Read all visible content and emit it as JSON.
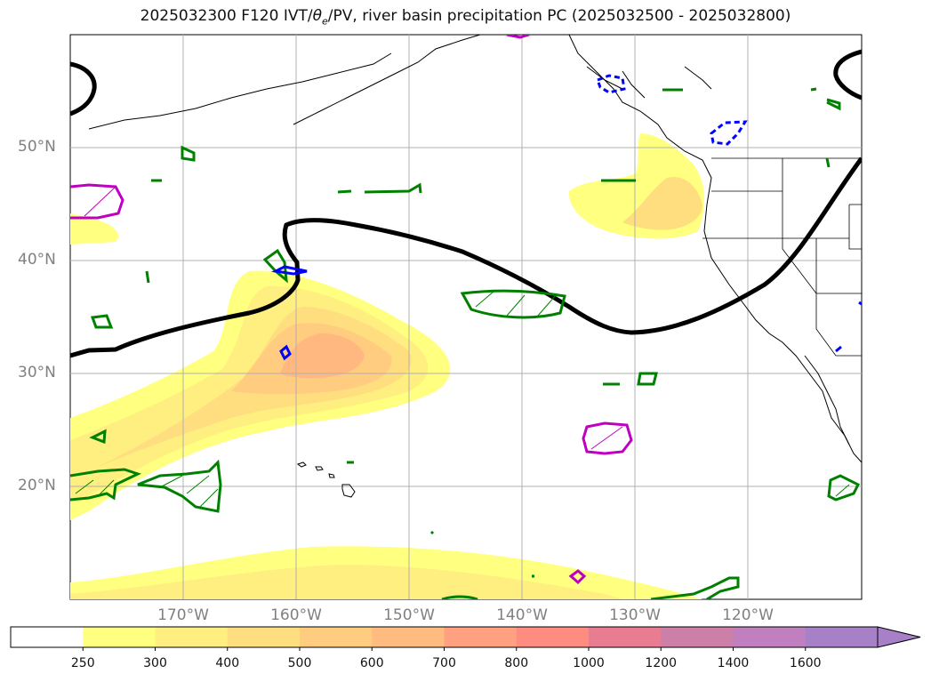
{
  "title": "2025032300 F120 IVT/θe/PV, river basin precipitation PC (2025032500 - 2025032800)",
  "title_parts": {
    "prefix": "2025032300 F120 IVT/",
    "theta": "θ",
    "sub": "e",
    "suffix": "/PV, river basin precipitation PC (2025032500 - 2025032800)"
  },
  "map": {
    "lat_labels": [
      "50°N",
      "40°N",
      "30°N",
      "20°N"
    ],
    "lon_labels": [
      "170°W",
      "160°W",
      "150°W",
      "140°W",
      "130°W",
      "120°W"
    ],
    "colors": {
      "theta_e_contour": "#000000",
      "pv_contour": "#008000",
      "precip_pos": "#c000c0",
      "precip_neg": "#0000ff",
      "grid": "#b0b0b0"
    }
  },
  "colorbar": {
    "labels": [
      "250",
      "300",
      "400",
      "500",
      "600",
      "700",
      "800",
      "1000",
      "1200",
      "1400",
      "1600"
    ],
    "colors": [
      "#ffffff",
      "#ffff80",
      "#ffee80",
      "#ffde80",
      "#ffcc80",
      "#ffbb80",
      "#ffa080",
      "#ff8c80",
      "#e87c90",
      "#cc80a8",
      "#c080c0",
      "#a880c8"
    ]
  }
}
